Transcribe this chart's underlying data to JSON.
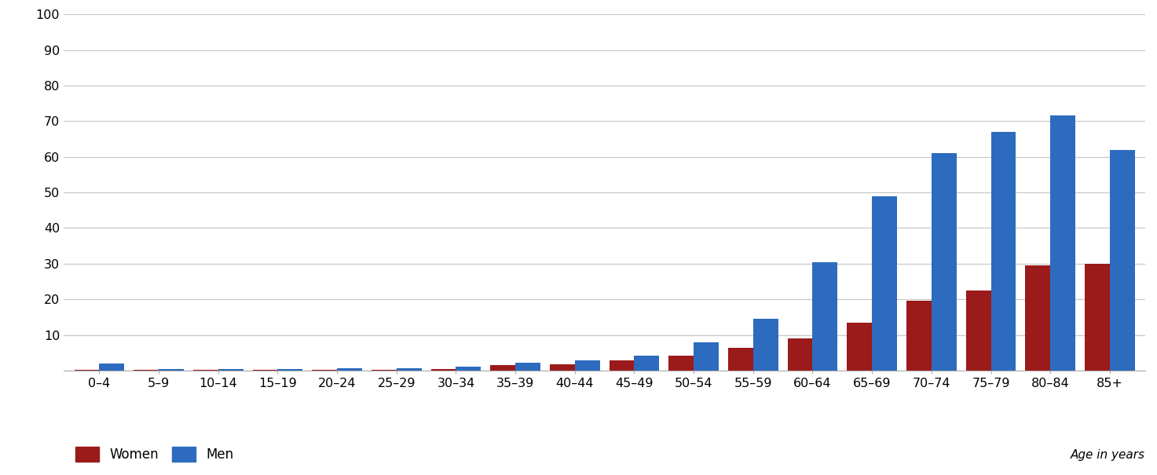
{
  "categories": [
    "0–4",
    "5–9",
    "10–14",
    "15–19",
    "20–24",
    "25–29",
    "30–34",
    "35–39",
    "40–44",
    "45–49",
    "50–54",
    "55–59",
    "60–64",
    "65–69",
    "70–74",
    "75–79",
    "80–84",
    "85+"
  ],
  "women": [
    0.3,
    0.2,
    0.2,
    0.2,
    0.3,
    0.3,
    0.5,
    1.5,
    1.7,
    2.8,
    4.2,
    6.4,
    9.0,
    13.5,
    19.5,
    22.5,
    29.5,
    30.0
  ],
  "men": [
    2.0,
    0.5,
    0.4,
    0.5,
    0.6,
    0.7,
    1.0,
    2.2,
    2.8,
    4.2,
    8.0,
    14.5,
    30.5,
    49.0,
    61.0,
    67.0,
    71.5,
    62.0
  ],
  "women_color": "#9b1a1a",
  "men_color": "#2d6bbf",
  "legend_women": "Women",
  "legend_men": "Men",
  "age_label": "Age in years",
  "ylim": [
    0,
    100
  ],
  "yticks": [
    10,
    20,
    30,
    40,
    50,
    60,
    70,
    80,
    90,
    100
  ],
  "background_color": "#ffffff",
  "grid_color": "#c8c8c8",
  "bar_width": 0.42,
  "figsize": [
    14.73,
    6.05
  ],
  "dpi": 100
}
